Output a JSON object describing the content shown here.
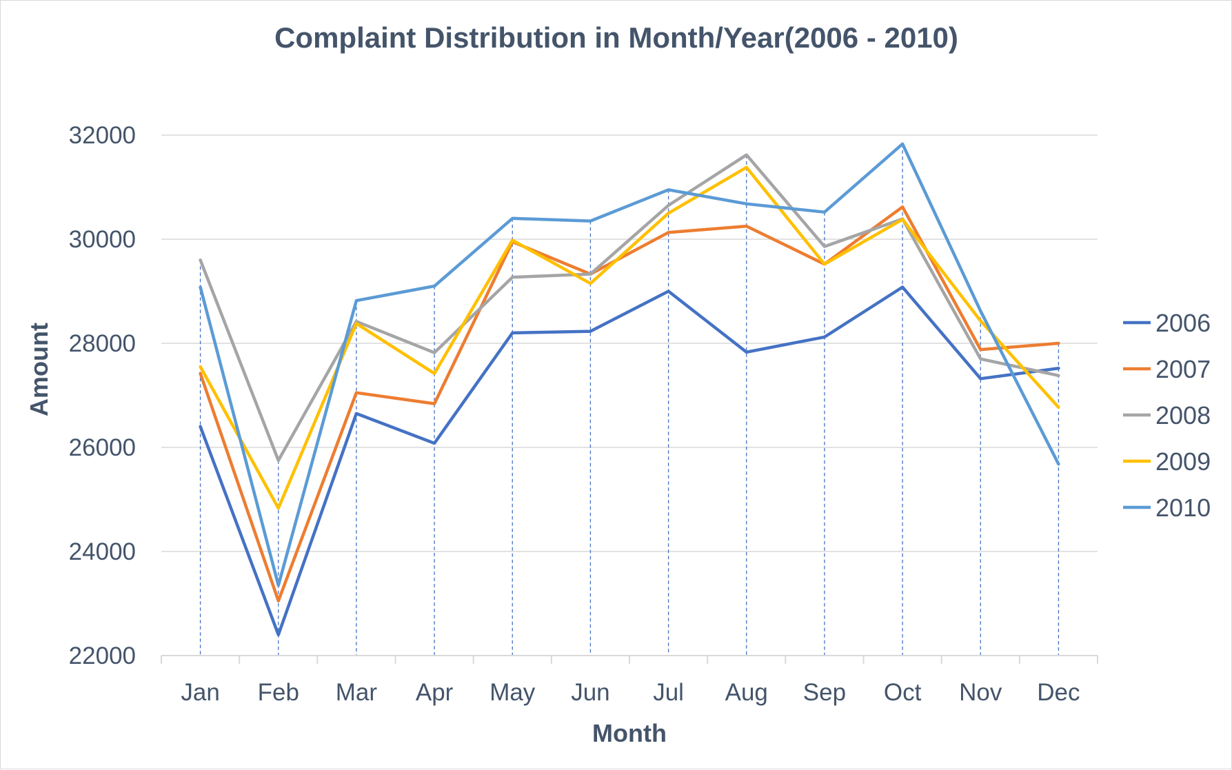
{
  "chart_data": {
    "type": "line",
    "title": "Complaint Distribution in Month/Year(2006 - 2010)",
    "xlabel": "Month",
    "ylabel": "Amount",
    "categories": [
      "Jan",
      "Feb",
      "Mar",
      "Apr",
      "May",
      "Jun",
      "Jul",
      "Aug",
      "Sep",
      "Oct",
      "Nov",
      "Dec"
    ],
    "ylim": [
      22000,
      32000
    ],
    "yticks": [
      22000,
      24000,
      26000,
      28000,
      30000,
      32000
    ],
    "ytick_labels": [
      "22000",
      "24000",
      "26000",
      "28000",
      "30000",
      "32000"
    ],
    "grid": "horizontal",
    "drop_lines": true,
    "legend_position": "right",
    "series": [
      {
        "name": "2006",
        "color": "#4472c4",
        "values": [
          26400,
          22400,
          26650,
          26080,
          28200,
          28230,
          29000,
          27830,
          28120,
          29080,
          27320,
          27520
        ]
      },
      {
        "name": "2007",
        "color": "#ed7d31",
        "values": [
          27420,
          23050,
          27050,
          26840,
          29950,
          29330,
          30130,
          30250,
          29520,
          30620,
          27880,
          28000
        ]
      },
      {
        "name": "2008",
        "color": "#a5a5a5",
        "values": [
          29600,
          25750,
          28420,
          27820,
          29270,
          29330,
          30650,
          31620,
          29860,
          30390,
          27700,
          27380
        ]
      },
      {
        "name": "2009",
        "color": "#ffc000",
        "values": [
          27550,
          24830,
          28380,
          27420,
          29980,
          29150,
          30500,
          31380,
          29520,
          30380,
          28430,
          26770
        ]
      },
      {
        "name": "2010",
        "color": "#5b9bd5",
        "values": [
          29080,
          23350,
          28820,
          29100,
          30400,
          30350,
          30950,
          30680,
          30520,
          31830,
          28620,
          25680
        ]
      }
    ]
  }
}
